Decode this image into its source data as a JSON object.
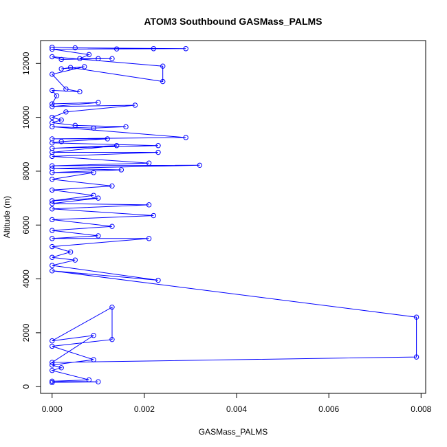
{
  "chart_data": {
    "type": "line",
    "title": "ATOM3 Southbound GASMass_PALMS",
    "xlabel": "GASMass_PALMS",
    "ylabel": "Altitude (m)",
    "xlim": [
      -0.00025,
      0.0081
    ],
    "ylim": [
      -250,
      12850
    ],
    "x_ticks": [
      0.0,
      0.002,
      0.004,
      0.006,
      0.008
    ],
    "x_tick_labels": [
      "0.000",
      "0.002",
      "0.004",
      "0.006",
      "0.008"
    ],
    "y_ticks": [
      0,
      2000,
      4000,
      6000,
      8000,
      10000,
      12000
    ],
    "y_tick_labels": [
      "0",
      "2000",
      "4000",
      "6000",
      "8000",
      "10000",
      "12000"
    ],
    "grid": false,
    "legend": "none",
    "series": [
      {
        "color": "#0000ff",
        "marker": "open-circle",
        "points": [
          {
            "x": 0.0,
            "y": 12600
          },
          {
            "x": 0.0005,
            "y": 12580
          },
          {
            "x": 0.0029,
            "y": 12550
          },
          {
            "x": 0.0014,
            "y": 12540
          },
          {
            "x": 0.0022,
            "y": 12550
          },
          {
            "x": 0.0,
            "y": 12530
          },
          {
            "x": 0.0008,
            "y": 12330
          },
          {
            "x": 0.0006,
            "y": 12180
          },
          {
            "x": 0.001,
            "y": 12180
          },
          {
            "x": 0.0013,
            "y": 12180
          },
          {
            "x": 0.0002,
            "y": 12150
          },
          {
            "x": 0.0,
            "y": 12250
          },
          {
            "x": 0.0024,
            "y": 11900
          },
          {
            "x": 0.0024,
            "y": 11330
          },
          {
            "x": 0.0004,
            "y": 11850
          },
          {
            "x": 0.0002,
            "y": 11800
          },
          {
            "x": 0.0007,
            "y": 11880
          },
          {
            "x": 0.0,
            "y": 11600
          },
          {
            "x": 0.0003,
            "y": 11050
          },
          {
            "x": 0.0006,
            "y": 10950
          },
          {
            "x": 0.0,
            "y": 11000
          },
          {
            "x": 0.0001,
            "y": 10800
          },
          {
            "x": 0.0,
            "y": 10500
          },
          {
            "x": 0.001,
            "y": 10550
          },
          {
            "x": 0.0,
            "y": 10400
          },
          {
            "x": 0.0018,
            "y": 10450
          },
          {
            "x": 0.0003,
            "y": 10200
          },
          {
            "x": 0.0,
            "y": 10000
          },
          {
            "x": 0.0002,
            "y": 9900
          },
          {
            "x": 0.0,
            "y": 9800
          },
          {
            "x": 0.0005,
            "y": 9700
          },
          {
            "x": 0.0016,
            "y": 9650
          },
          {
            "x": 0.0009,
            "y": 9600
          },
          {
            "x": 0.0,
            "y": 9650
          },
          {
            "x": 0.0029,
            "y": 9250
          },
          {
            "x": 0.0,
            "y": 9200
          },
          {
            "x": 0.0012,
            "y": 9200
          },
          {
            "x": 0.0002,
            "y": 9100
          },
          {
            "x": 0.0,
            "y": 9050
          },
          {
            "x": 0.0023,
            "y": 8950
          },
          {
            "x": 0.0,
            "y": 8850
          },
          {
            "x": 0.0014,
            "y": 8950
          },
          {
            "x": 0.0,
            "y": 8700
          },
          {
            "x": 0.0023,
            "y": 8700
          },
          {
            "x": 0.0,
            "y": 8550
          },
          {
            "x": 0.0021,
            "y": 8300
          },
          {
            "x": 0.0,
            "y": 8200
          },
          {
            "x": 0.0032,
            "y": 8220
          },
          {
            "x": 0.0,
            "y": 8100
          },
          {
            "x": 0.0015,
            "y": 8050
          },
          {
            "x": 0.0,
            "y": 7950
          },
          {
            "x": 0.0009,
            "y": 7950
          },
          {
            "x": 0.0,
            "y": 7700
          },
          {
            "x": 0.0013,
            "y": 7450
          },
          {
            "x": 0.0,
            "y": 7300
          },
          {
            "x": 0.0009,
            "y": 7100
          },
          {
            "x": 0.0,
            "y": 6900
          },
          {
            "x": 0.001,
            "y": 7000
          },
          {
            "x": 0.0,
            "y": 6800
          },
          {
            "x": 0.0021,
            "y": 6750
          },
          {
            "x": 0.0,
            "y": 6600
          },
          {
            "x": 0.0022,
            "y": 6350
          },
          {
            "x": 0.0,
            "y": 6200
          },
          {
            "x": 0.0013,
            "y": 5950
          },
          {
            "x": 0.0,
            "y": 5800
          },
          {
            "x": 0.001,
            "y": 5600
          },
          {
            "x": 0.0,
            "y": 5500
          },
          {
            "x": 0.0021,
            "y": 5500
          },
          {
            "x": 0.0,
            "y": 5200
          },
          {
            "x": 0.0004,
            "y": 5000
          },
          {
            "x": 0.0,
            "y": 4800
          },
          {
            "x": 0.0005,
            "y": 4700
          },
          {
            "x": 0.0,
            "y": 4500
          },
          {
            "x": 0.0023,
            "y": 3950
          },
          {
            "x": 0.0,
            "y": 4300
          },
          {
            "x": 0.0079,
            "y": 2580
          },
          {
            "x": 0.0079,
            "y": 1100
          },
          {
            "x": 0.0,
            "y": 900
          },
          {
            "x": 0.0009,
            "y": 1900
          },
          {
            "x": 0.0,
            "y": 1700
          },
          {
            "x": 0.0013,
            "y": 2950
          },
          {
            "x": 0.0013,
            "y": 1750
          },
          {
            "x": 0.0,
            "y": 1500
          },
          {
            "x": 0.0009,
            "y": 1000
          },
          {
            "x": 0.0,
            "y": 800
          },
          {
            "x": 0.0002,
            "y": 700
          },
          {
            "x": 0.0,
            "y": 600
          },
          {
            "x": 0.0008,
            "y": 250
          },
          {
            "x": 0.0,
            "y": 200
          },
          {
            "x": 0.001,
            "y": 180
          },
          {
            "x": 0.0,
            "y": 150
          }
        ]
      }
    ]
  }
}
